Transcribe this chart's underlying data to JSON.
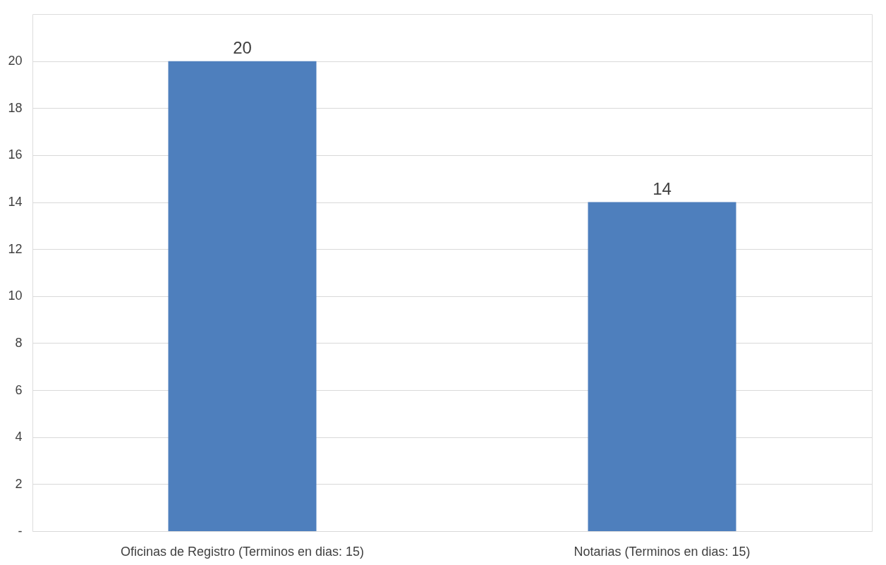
{
  "chart_data": {
    "type": "bar",
    "categories": [
      "Oficinas de Registro (Terminos en dias: 15)",
      "Notarias (Terminos en dias: 15)"
    ],
    "values": [
      20,
      14
    ],
    "color": "#4e7fbd",
    "ylim": [
      0,
      22
    ],
    "yticks": [
      {
        "value": 0,
        "label": "-"
      },
      2,
      4,
      6,
      8,
      10,
      12,
      14,
      16,
      18,
      20
    ],
    "grid": "y",
    "data_labels": true
  }
}
